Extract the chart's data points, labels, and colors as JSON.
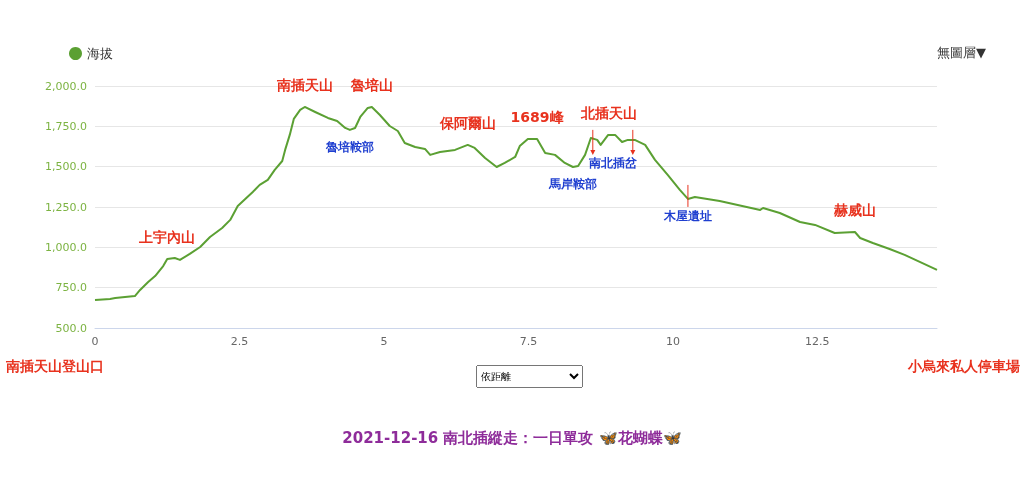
{
  "chart_data": {
    "type": "line",
    "title": "2021-12-16 南北插縱走：一日單攻 🦋花蝴蝶🦋",
    "legend": "top left",
    "grid": "y",
    "marker": "none",
    "line_style": "solid",
    "x": [
      0,
      0.26,
      0.35,
      0.69,
      0.78,
      0.92,
      1.04,
      1.18,
      1.25,
      1.38,
      1.47,
      1.64,
      1.82,
      1.99,
      2.2,
      2.34,
      2.47,
      2.6,
      2.73,
      2.85,
      2.99,
      3.11,
      3.24,
      3.29,
      3.37,
      3.44,
      3.55,
      3.63,
      3.81,
      4.03,
      4.19,
      4.33,
      4.41,
      4.5,
      4.59,
      4.72,
      4.79,
      4.93,
      5.1,
      5.24,
      5.36,
      5.54,
      5.71,
      5.8,
      5.97,
      6.23,
      6.45,
      6.57,
      6.75,
      6.95,
      7.09,
      7.27,
      7.35,
      7.49,
      7.65,
      7.79,
      7.96,
      8.13,
      8.27,
      8.36,
      8.48,
      8.58,
      8.69,
      8.75,
      8.88,
      9.0,
      9.12,
      9.22,
      9.34,
      9.52,
      9.69,
      9.91,
      10.12,
      10.26,
      10.38,
      10.81,
      11.51,
      11.56,
      11.85,
      12.2,
      12.46,
      12.8,
      13.15,
      13.24,
      13.46,
      13.75,
      14.01,
      14.57
    ],
    "series": [
      {
        "name": "海拔",
        "color": "#5ba033",
        "values": [
          674,
          680,
          686,
          698,
          736,
          785,
          822,
          884,
          928,
          934,
          922,
          959,
          1002,
          1064,
          1120,
          1170,
          1256,
          1300,
          1343,
          1387,
          1418,
          1480,
          1535,
          1604,
          1697,
          1796,
          1852,
          1870,
          1839,
          1802,
          1783,
          1740,
          1728,
          1740,
          1808,
          1864,
          1870,
          1820,
          1752,
          1721,
          1647,
          1622,
          1610,
          1573,
          1591,
          1604,
          1635,
          1616,
          1554,
          1498,
          1523,
          1560,
          1628,
          1672,
          1672,
          1585,
          1573,
          1523,
          1498,
          1504,
          1573,
          1678,
          1666,
          1635,
          1697,
          1697,
          1653,
          1666,
          1666,
          1635,
          1542,
          1449,
          1356,
          1300,
          1312,
          1287,
          1232,
          1244,
          1213,
          1157,
          1139,
          1089,
          1095,
          1058,
          1027,
          990,
          953,
          860
        ]
      }
    ],
    "xlim": [
      0,
      14.57
    ],
    "xticks": [
      0,
      2.5,
      5,
      7.5,
      10,
      12.5
    ],
    "ylim": [
      500,
      2000
    ],
    "yticks": [
      {
        "value": 500,
        "label": "500.0"
      },
      {
        "value": 750,
        "label": "750.0"
      },
      {
        "value": 1000,
        "label": "1,000.0"
      },
      {
        "value": 1250,
        "label": "1,250.0"
      },
      {
        "value": 1500,
        "label": "1,500.0"
      },
      {
        "value": 1750,
        "label": "1,750.0"
      },
      {
        "value": 2000,
        "label": "2,000.0"
      }
    ],
    "annotations": [
      {
        "text": "上宇內山",
        "x": 1.25,
        "y": 928
      },
      {
        "text": "南插天山",
        "x": 3.63,
        "y": 1870
      },
      {
        "text": "魯培山",
        "x": 4.79,
        "y": 1870
      },
      {
        "text": "魯培鞍部",
        "x": 4.41,
        "y": 1728
      },
      {
        "text": "保阿爾山",
        "x": 6.45,
        "y": 1635
      },
      {
        "text": "1689峰",
        "x": 7.65,
        "y": 1672
      },
      {
        "text": "馬岸鞍部",
        "x": 8.27,
        "y": 1498
      },
      {
        "text": "北插天山",
        "x": 8.9,
        "y": 1697
      },
      {
        "text": "南北插岔",
        "x": 8.96,
        "y": 1697
      },
      {
        "text": "木屋遺址",
        "x": 10.26,
        "y": 1300
      },
      {
        "text": "赫威山",
        "x": 13.15,
        "y": 1095
      },
      "南插天山登山口",
      "小烏來私人停車場",
      "依距離",
      "無圖層▼"
    ]
  }
}
